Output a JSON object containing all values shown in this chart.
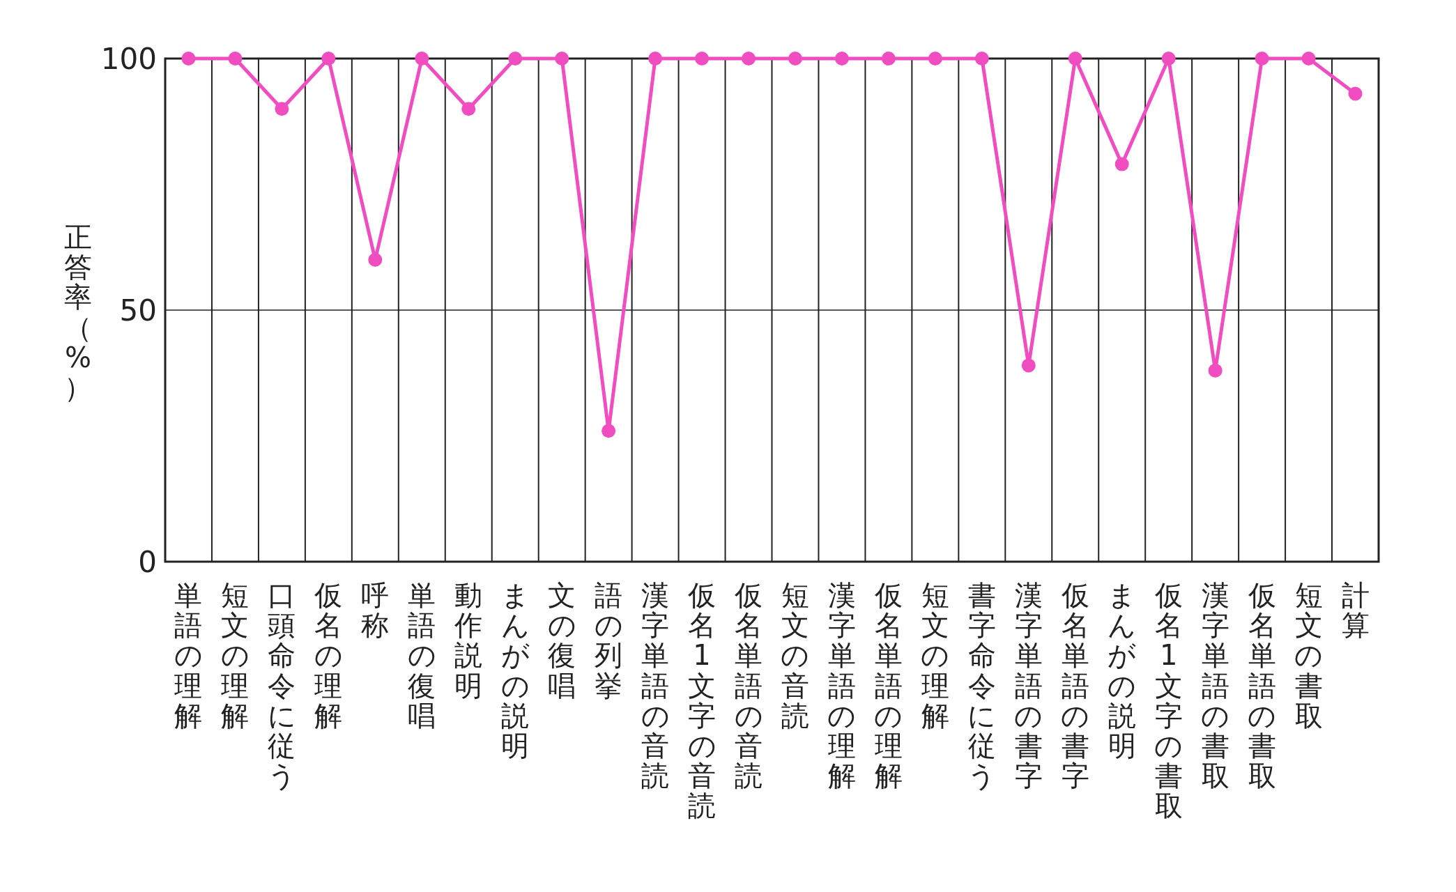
{
  "chart_data": {
    "type": "line",
    "ylabel": "正答率（%）",
    "categories": [
      "単語の理解",
      "短文の理解",
      "口頭命令に従う",
      "仮名の理解",
      "呼称",
      "単語の復唱",
      "動作説明",
      "まんがの説明",
      "文の復唱",
      "語の列挙",
      "漢字単語の音読",
      "仮名1文字の音読",
      "仮名単語の音読",
      "短文の音読",
      "漢字単語の理解",
      "仮名単語の理解",
      "短文の理解",
      "書字命令に従う",
      "漢字単語の書字",
      "仮名単語の書字",
      "まんがの説明",
      "仮名1文字の書取",
      "漢字単語の書取",
      "仮名単語の書取",
      "短文の書取",
      "計算"
    ],
    "series": [
      {
        "color": "#f04ec0",
        "values": [
          100,
          100,
          90,
          100,
          60,
          100,
          90,
          100,
          100,
          26,
          100,
          100,
          100,
          100,
          100,
          100,
          100,
          100,
          39,
          100,
          79,
          100,
          38,
          100,
          100,
          93
        ]
      }
    ],
    "ylim": [
      0,
      100
    ],
    "yticks": [
      0,
      50,
      100
    ],
    "grid": "x",
    "ref_lines": [
      {
        "axis": "y",
        "value": 50,
        "color": "#222222"
      }
    ],
    "marker": "circle",
    "line_style": "solid"
  }
}
